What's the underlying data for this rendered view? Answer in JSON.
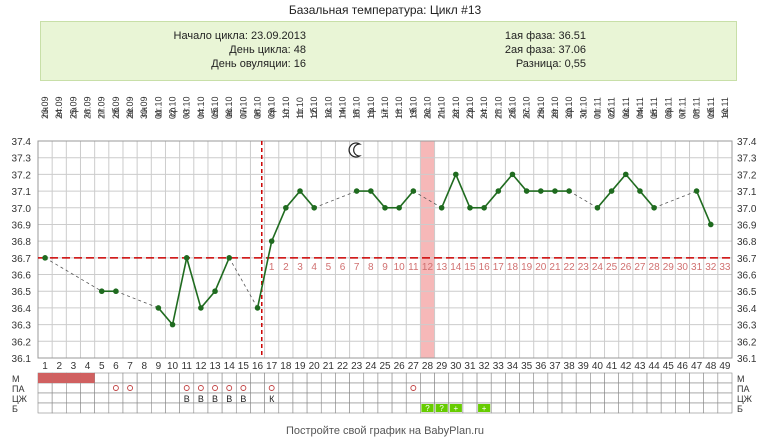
{
  "title": "Базальная температура: Цикл #13",
  "info": {
    "left": [
      "Начало цикла: 23.09.2013",
      "День цикла: 48",
      "День овуляции: 16"
    ],
    "right": [
      "1ая фаза: 36.51",
      "2ая фаза: 37.06",
      "Разница: 0,55"
    ]
  },
  "footer": "Постройте свой график на BabyPlan.ru",
  "colors": {
    "line": "#1f6b1f",
    "point": "#1f6b1f",
    "coverline": "#cc0000",
    "highlight": "#f6b8b8",
    "menses": "#d06060",
    "grid": "#cccccc",
    "info_bg": "#e9f5d6",
    "phase2_numbers": "#d07070",
    "marker_green": "#66cc00"
  },
  "chart_data": {
    "type": "line",
    "title": "Базальная температура: Цикл #13",
    "ylim": [
      36.1,
      37.4
    ],
    "ytick_step": 0.1,
    "grid": true,
    "x": [
      1,
      2,
      3,
      4,
      5,
      6,
      7,
      8,
      9,
      10,
      11,
      12,
      13,
      14,
      15,
      16,
      17,
      18,
      19,
      20,
      21,
      22,
      23,
      24,
      25,
      26,
      27,
      28,
      29,
      30,
      31,
      32,
      33,
      34,
      35,
      36,
      37,
      38,
      39,
      40,
      41,
      42,
      43,
      44,
      45,
      46,
      47,
      48,
      49
    ],
    "dates": [
      "23.09",
      "24.09",
      "25.09",
      "26.09",
      "27.09",
      "28.09",
      "29.09",
      "30.09",
      "01.10",
      "02.10",
      "03.10",
      "04.10",
      "05.10",
      "06.10",
      "07.10",
      "08.10",
      "09.10",
      "10.10",
      "11.10",
      "12.10",
      "13.10",
      "14.10",
      "15.10",
      "16.10",
      "17.10",
      "18.10",
      "19.10",
      "20.10",
      "21.10",
      "22.10",
      "23.10",
      "24.10",
      "25.10",
      "26.10",
      "27.10",
      "28.10",
      "29.10",
      "30.10",
      "31.10",
      "01.11",
      "02.11",
      "03.11",
      "04.11",
      "05.11",
      "06.11",
      "07.11",
      "08.11",
      "09.11",
      "10.11"
    ],
    "weekdays": [
      "пн",
      "вт",
      "ср",
      "чт",
      "пт",
      "сб",
      "вс",
      "пн",
      "вт",
      "ср",
      "чт",
      "пт",
      "сб",
      "вс",
      "пн",
      "вт",
      "ср",
      "чт",
      "пт",
      "сб",
      "вс",
      "пн",
      "вт",
      "ср",
      "чт",
      "пт",
      "сб",
      "вс",
      "пн",
      "вт",
      "ср",
      "чт",
      "пт",
      "сб",
      "вс",
      "пн",
      "вт",
      "ср",
      "чт",
      "пт",
      "сб",
      "вс",
      "пн",
      "вт",
      "ср",
      "чт",
      "пт",
      "сб",
      "вс"
    ],
    "temperatures": [
      36.7,
      null,
      null,
      null,
      36.5,
      36.5,
      null,
      null,
      36.4,
      36.3,
      36.7,
      36.4,
      36.5,
      36.7,
      null,
      36.4,
      36.8,
      37.0,
      37.1,
      37.0,
      null,
      null,
      37.1,
      37.1,
      37.0,
      37.0,
      37.1,
      null,
      37.0,
      37.2,
      37.0,
      37.0,
      37.1,
      37.2,
      37.1,
      37.1,
      37.1,
      37.1,
      null,
      37.0,
      37.1,
      37.2,
      37.1,
      37.0,
      null,
      null,
      37.1,
      36.9,
      null
    ],
    "coverline": 36.7,
    "ovulation_day": 16,
    "highlight_day": 28,
    "moon_day": 23,
    "phase2_numbers": [
      null,
      null,
      null,
      null,
      null,
      null,
      null,
      null,
      null,
      null,
      null,
      null,
      null,
      null,
      null,
      null,
      "1",
      "2",
      "3",
      "4",
      "5",
      "6",
      "7",
      "8",
      "9",
      "10",
      "11",
      "12",
      "13",
      "14",
      "15",
      "16",
      "17",
      "18",
      "19",
      "20",
      "21",
      "22",
      "23",
      "24",
      "25",
      "26",
      "27",
      "28",
      "29",
      "30",
      "31",
      "32",
      "33"
    ],
    "row_labels": [
      "М",
      "ПА",
      "ЦЖ",
      "Б"
    ],
    "menses_days": [
      1,
      2,
      3,
      4
    ],
    "pa_days": [
      6,
      7,
      11,
      12,
      13,
      14,
      15,
      17,
      27
    ],
    "cm_days": [
      11,
      12,
      13,
      14,
      15,
      17
    ],
    "cm_values": [
      "В",
      "В",
      "В",
      "В",
      "В",
      "К"
    ],
    "b_markers": [
      {
        "day": 28,
        "text": "?"
      },
      {
        "day": 29,
        "text": "?"
      },
      {
        "day": 30,
        "text": "+"
      },
      {
        "day": 32,
        "text": "+"
      }
    ]
  }
}
